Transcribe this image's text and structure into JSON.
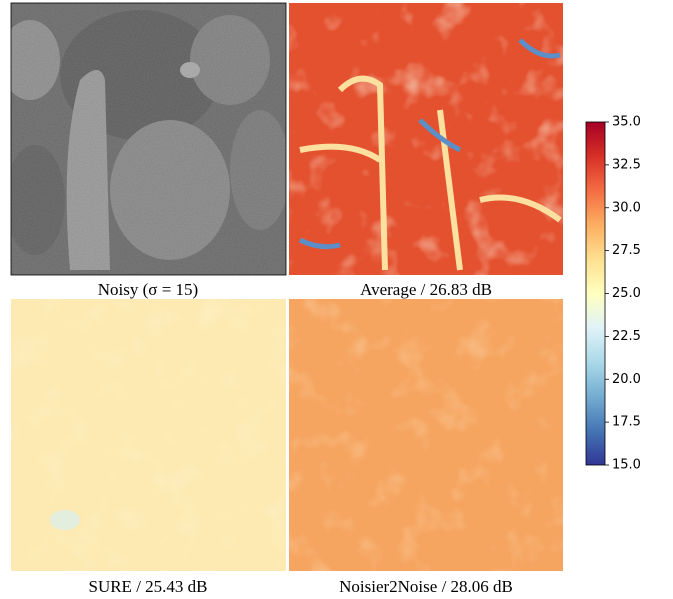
{
  "panels": [
    {
      "caption": "Noisy (σ = 15)"
    },
    {
      "caption": "Average / 26.83 dB"
    },
    {
      "caption": "SURE / 25.43 dB"
    },
    {
      "caption": "Noisier2Noise / 28.06 dB"
    }
  ],
  "colorbar": {
    "lim": [
      15,
      35
    ],
    "ticks": [
      {
        "value": 15,
        "label": "15.0"
      },
      {
        "value": 17.5,
        "label": "17.5"
      },
      {
        "value": 20,
        "label": "20.0"
      },
      {
        "value": 22.5,
        "label": "22.5"
      },
      {
        "value": 25,
        "label": "25.0"
      },
      {
        "value": 27.5,
        "label": "27.5"
      },
      {
        "value": 30,
        "label": "30.0"
      },
      {
        "value": 32.5,
        "label": "32.5"
      },
      {
        "value": 35,
        "label": "35.0"
      }
    ]
  }
}
